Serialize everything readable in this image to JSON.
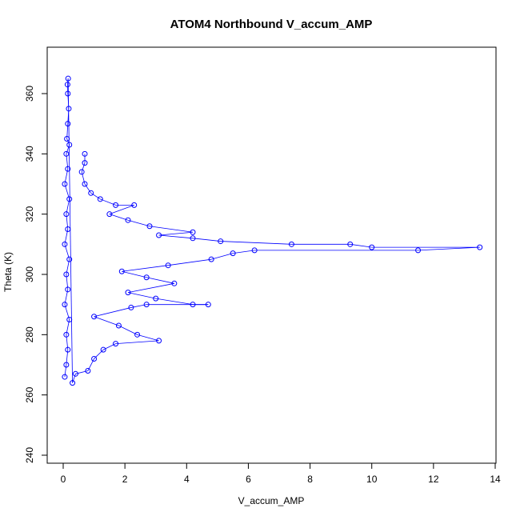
{
  "chart_data": {
    "type": "scatter",
    "title": "ATOM4 Northbound V_accum_AMP",
    "xlabel": "V_accum_AMP",
    "ylabel": "Theta (K)",
    "xlim": [
      0,
      14
    ],
    "ylim": [
      240,
      370
    ],
    "xticks": [
      0,
      2,
      4,
      6,
      8,
      10,
      12,
      14
    ],
    "yticks": [
      240,
      260,
      280,
      300,
      320,
      340,
      360
    ],
    "grid": false,
    "legend": "none",
    "color": "#0000ff",
    "marker": "open-circle",
    "connected": true,
    "series": [
      {
        "points": [
          [
            0.05,
            266
          ],
          [
            0.1,
            270
          ],
          [
            0.15,
            275
          ],
          [
            0.1,
            280
          ],
          [
            0.2,
            285
          ],
          [
            0.05,
            290
          ],
          [
            0.15,
            295
          ],
          [
            0.1,
            300
          ],
          [
            0.2,
            305
          ],
          [
            0.05,
            310
          ],
          [
            0.15,
            315
          ],
          [
            0.1,
            320
          ],
          [
            0.2,
            325
          ],
          [
            0.05,
            330
          ],
          [
            0.15,
            335
          ],
          [
            0.1,
            340
          ],
          [
            0.2,
            343
          ],
          [
            0.12,
            345
          ],
          [
            0.15,
            350
          ],
          [
            0.18,
            355
          ],
          [
            0.15,
            360
          ],
          [
            0.14,
            363
          ],
          [
            0.16,
            365
          ],
          [
            0.3,
            264
          ],
          [
            0.4,
            267
          ],
          [
            0.8,
            268
          ],
          [
            1.0,
            272
          ],
          [
            1.3,
            275
          ],
          [
            1.7,
            277
          ],
          [
            3.1,
            278
          ],
          [
            2.4,
            280
          ],
          [
            1.8,
            283
          ],
          [
            1.0,
            286
          ],
          [
            2.2,
            289
          ],
          [
            2.7,
            290
          ],
          [
            4.7,
            290
          ],
          [
            4.2,
            290
          ],
          [
            3.0,
            292
          ],
          [
            2.1,
            294
          ],
          [
            3.6,
            297
          ],
          [
            2.7,
            299
          ],
          [
            1.9,
            301
          ],
          [
            3.4,
            303
          ],
          [
            4.8,
            305
          ],
          [
            5.5,
            307
          ],
          [
            6.2,
            308
          ],
          [
            11.5,
            308
          ],
          [
            13.5,
            309
          ],
          [
            10.0,
            309
          ],
          [
            9.3,
            310
          ],
          [
            7.4,
            310
          ],
          [
            5.1,
            311
          ],
          [
            4.2,
            312
          ],
          [
            3.1,
            313
          ],
          [
            4.2,
            314
          ],
          [
            2.8,
            316
          ],
          [
            2.1,
            318
          ],
          [
            1.5,
            320
          ],
          [
            2.3,
            323
          ],
          [
            1.7,
            323
          ],
          [
            1.2,
            325
          ],
          [
            0.9,
            327
          ],
          [
            0.7,
            330
          ],
          [
            0.6,
            334
          ],
          [
            0.7,
            337
          ],
          [
            0.7,
            340
          ]
        ]
      }
    ]
  }
}
